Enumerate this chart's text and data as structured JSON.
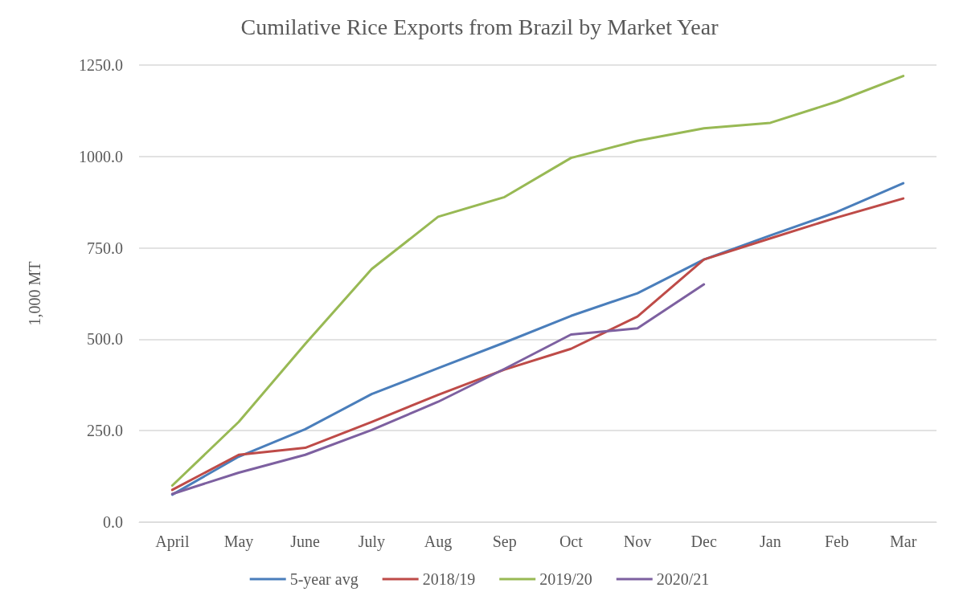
{
  "chart_data": {
    "type": "line",
    "title": "Cumilative Rice Exports from Brazil by Market Year",
    "ylabel": "1,000 MT",
    "categories": [
      "April",
      "May",
      "June",
      "July",
      "Aug",
      "Sep",
      "Oct",
      "Nov",
      "Dec",
      "Jan",
      "Feb",
      "Mar"
    ],
    "series": [
      {
        "name": "5-year avg",
        "color": "#4a7ebb",
        "values": [
          75,
          179,
          254,
          350,
          421,
          491,
          564,
          626,
          718,
          784,
          848,
          927
        ]
      },
      {
        "name": "2018/19",
        "color": "#be4b48",
        "values": [
          88,
          184,
          203,
          274,
          348,
          417,
          474,
          562,
          718,
          776,
          833,
          885
        ]
      },
      {
        "name": "2019/20",
        "color": "#98b954",
        "values": [
          100,
          274,
          487,
          692,
          835,
          889,
          996,
          1043,
          1077,
          1092,
          1150,
          1220
        ]
      },
      {
        "name": "2020/21",
        "color": "#7d60a0",
        "values": [
          77,
          135,
          184,
          252,
          329,
          419,
          513,
          530,
          650,
          null,
          null,
          null
        ]
      }
    ],
    "ylim": [
      0,
      1250
    ],
    "yticks": [
      {
        "value": 0,
        "label": "0.0"
      },
      {
        "value": 250,
        "label": "250.0"
      },
      {
        "value": 500,
        "label": "500.0"
      },
      {
        "value": 750,
        "label": "750.0"
      },
      {
        "value": 1000,
        "label": "1000.0"
      },
      {
        "value": 1250,
        "label": "1250.0"
      }
    ],
    "grid": "y",
    "legend": "bottom",
    "marker": "none",
    "line_style": "solid"
  }
}
